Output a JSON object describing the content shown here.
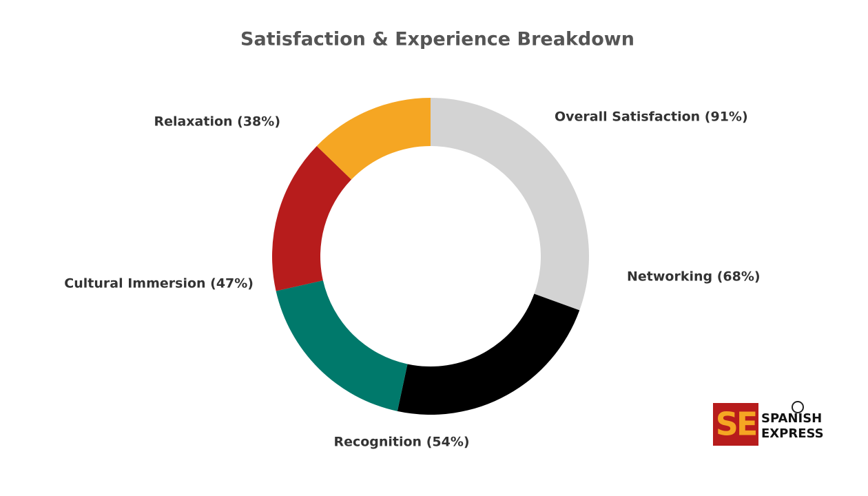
{
  "chart_data": {
    "type": "donut",
    "title": "Satisfaction & Experience Breakdown",
    "values": [
      91,
      68,
      54,
      47,
      38
    ],
    "value_labels": [
      "Overall Satisfaction (91%)",
      "Networking (68%)",
      "Recognition (54%)",
      "Cultural Immersion (47%)",
      "Relaxation (38%)"
    ],
    "colors": [
      "#d3d3d3",
      "#000000",
      "#00796b",
      "#b71c1c",
      "#f5a623"
    ]
  },
  "logo": {
    "mark": "SE",
    "line1": "SPANISH",
    "line2": "EXPRESS"
  }
}
